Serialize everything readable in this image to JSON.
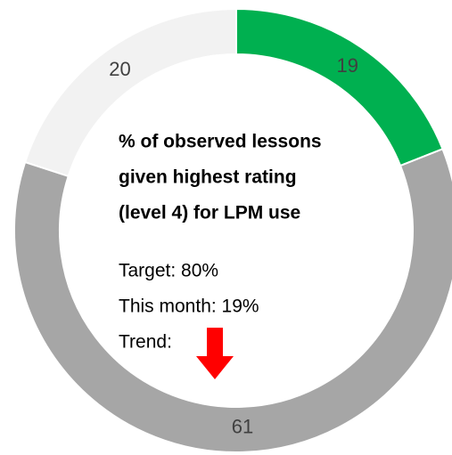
{
  "chart_data": {
    "type": "donut",
    "values": [
      19,
      61,
      20
    ],
    "colors": [
      "#00b050",
      "#a6a6a6",
      "#f2f2f2"
    ],
    "title_lines": [
      "% of observed lessons",
      "given highest rating",
      "(level 4) for LPM use"
    ],
    "annotations": [
      "Target: 80%",
      "This month: 19%",
      "Trend:"
    ]
  }
}
